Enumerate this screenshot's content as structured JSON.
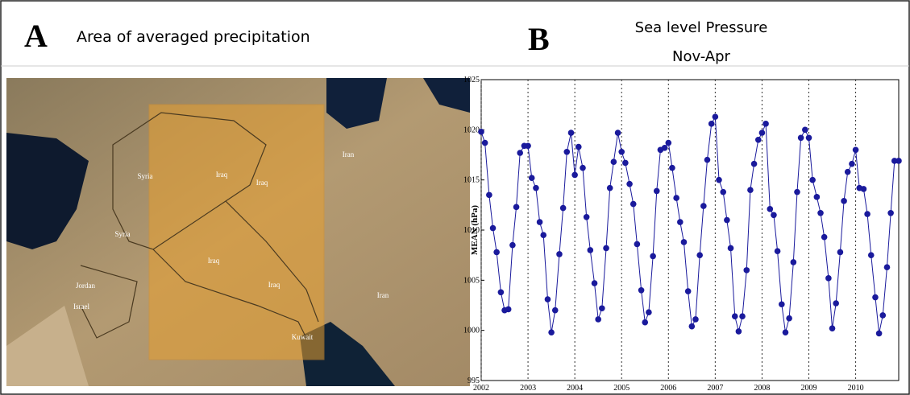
{
  "map": {
    "panel_label": "A",
    "title": "Area of averaged precipitation",
    "place_labels": [
      "Syria",
      "Iraq",
      "Iraq",
      "Syria",
      "Jordan",
      "Israel",
      "Iraq",
      "Iraq",
      "Kuwait",
      "Iran",
      "Iran"
    ]
  },
  "chart_data": {
    "type": "line",
    "panel_label": "B",
    "title": "Sea level Pressure",
    "subtitle": "Nov-Apr",
    "y_label": "MEAN (hPa)",
    "x": [
      2002,
      2002.08,
      2002.17,
      2002.25,
      2002.33,
      2002.42,
      2002.5,
      2002.58,
      2002.67,
      2002.75,
      2002.83,
      2002.92,
      2003,
      2003.08,
      2003.17,
      2003.25,
      2003.33,
      2003.42,
      2003.5,
      2003.58,
      2003.67,
      2003.75,
      2003.83,
      2003.92,
      2004,
      2004.08,
      2004.17,
      2004.25,
      2004.33,
      2004.42,
      2004.5,
      2004.58,
      2004.67,
      2004.75,
      2004.83,
      2004.92,
      2005,
      2005.08,
      2005.17,
      2005.25,
      2005.33,
      2005.42,
      2005.5,
      2005.58,
      2005.67,
      2005.75,
      2005.83,
      2005.92,
      2006,
      2006.08,
      2006.17,
      2006.25,
      2006.33,
      2006.42,
      2006.5,
      2006.58,
      2006.67,
      2006.75,
      2006.83,
      2006.92,
      2007,
      2007.08,
      2007.17,
      2007.25,
      2007.33,
      2007.42,
      2007.5,
      2007.58,
      2007.67,
      2007.75,
      2007.83,
      2007.92,
      2008,
      2008.08,
      2008.17,
      2008.25,
      2008.33,
      2008.42,
      2008.5,
      2008.58,
      2008.67,
      2008.75,
      2008.83,
      2008.92,
      2009,
      2009.08,
      2009.17,
      2009.25,
      2009.33,
      2009.42,
      2009.5,
      2009.58,
      2009.67,
      2009.75,
      2009.83,
      2009.92,
      2010,
      2010.08,
      2010.17,
      2010.25,
      2010.33,
      2010.42,
      2010.5,
      2010.58,
      2010.67,
      2010.75,
      2010.83,
      2010.92
    ],
    "series": [
      {
        "color": "#1a1a9c",
        "values": [
          1019.8,
          1018.7,
          1013.5,
          1010.2,
          1007.8,
          1003.8,
          1002.0,
          1002.1,
          1008.5,
          1012.3,
          1017.7,
          1018.4,
          1018.4,
          1015.2,
          1014.2,
          1010.8,
          1009.5,
          1003.1,
          999.8,
          1002.0,
          1007.6,
          1012.2,
          1017.8,
          1019.7,
          1015.5,
          1018.3,
          1016.2,
          1011.3,
          1008.0,
          1004.7,
          1001.1,
          1002.2,
          1008.2,
          1014.2,
          1016.8,
          1019.7,
          1017.8,
          1016.7,
          1014.6,
          1012.6,
          1008.6,
          1004.0,
          1000.8,
          1001.8,
          1007.4,
          1013.9,
          1018.0,
          1018.2,
          1018.7,
          1016.2,
          1013.2,
          1010.8,
          1008.8,
          1003.9,
          1000.4,
          1001.1,
          1007.5,
          1012.4,
          1017.0,
          1020.6,
          1021.3,
          1015.0,
          1013.8,
          1011.0,
          1008.2,
          1001.4,
          999.9,
          1001.4,
          1006.0,
          1014.0,
          1016.6,
          1019.0,
          1019.7,
          1020.6,
          1012.1,
          1011.5,
          1007.9,
          1002.6,
          999.8,
          1001.2,
          1006.8,
          1013.8,
          1019.2,
          1020.0,
          1019.2,
          1015.0,
          1013.3,
          1011.7,
          1009.3,
          1005.2,
          1000.2,
          1002.7,
          1007.8,
          1012.9,
          1015.8,
          1016.6,
          1018.0,
          1014.2,
          1014.1,
          1011.6,
          1007.5,
          1003.3,
          999.7,
          1001.5,
          1006.3,
          1011.7,
          1016.9,
          1016.9
        ]
      }
    ],
    "xlim": [
      2002,
      2010.92
    ],
    "xticks": [
      2002,
      2003,
      2004,
      2005,
      2006,
      2007,
      2008,
      2009,
      2010
    ],
    "ylim": [
      995,
      1025
    ],
    "yticks": [
      995,
      1000,
      1005,
      1010,
      1015,
      1020,
      1025
    ],
    "grid": true
  }
}
